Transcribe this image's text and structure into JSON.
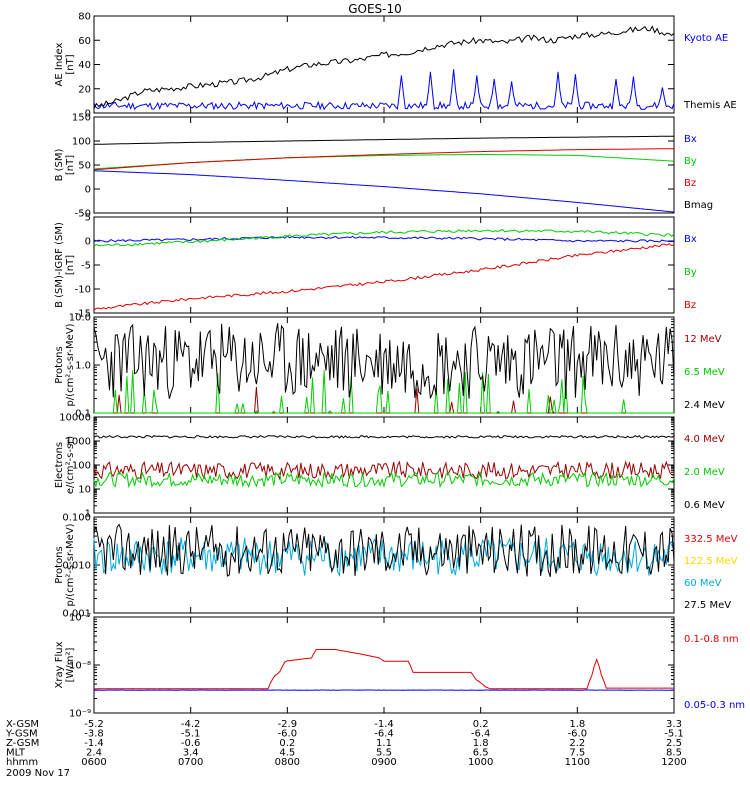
{
  "title": "GOES-10",
  "date_label": "2009 Nov 17",
  "colors": {
    "black": "#000000",
    "blue": "#0000ff",
    "green": "#00cc00",
    "red": "#dd0000",
    "darkred": "#990000",
    "yellow": "#ffd700",
    "cyan": "#00aadd"
  },
  "chart_data": [
    {
      "type": "line",
      "id": "ae",
      "ylabel": [
        "AE Index",
        "[nT]"
      ],
      "ylim": [
        0,
        80
      ],
      "yticks": [
        0,
        20,
        40,
        60,
        80
      ],
      "ytick_labels": [
        "0",
        "20",
        "40",
        "60",
        "80"
      ],
      "series": [
        {
          "name": "Kyoto AE",
          "color": "blue",
          "kind": "noise",
          "base": 6,
          "amp": 3,
          "seed": 11,
          "spikes": [
            [
              0.53,
              25
            ],
            [
              0.58,
              28
            ],
            [
              0.62,
              30
            ],
            [
              0.66,
              25
            ],
            [
              0.69,
              22
            ],
            [
              0.72,
              20
            ],
            [
              0.8,
              28
            ],
            [
              0.83,
              26
            ],
            [
              0.9,
              22
            ],
            [
              0.93,
              24
            ],
            [
              0.98,
              15
            ]
          ]
        },
        {
          "name": "Themis AE",
          "color": "black",
          "kind": "points",
          "x": [
            6.0,
            6.25,
            6.5,
            6.75,
            7.0,
            7.25,
            7.5,
            7.75,
            8.0,
            8.25,
            8.5,
            8.75,
            9.0,
            9.25,
            9.5,
            9.75,
            10.0,
            10.25,
            10.5,
            10.75,
            11.0,
            11.25,
            11.5,
            11.75,
            12.0
          ],
          "y": [
            5,
            10,
            18,
            20,
            22,
            24,
            26,
            30,
            36,
            40,
            42,
            44,
            48,
            50,
            55,
            58,
            60,
            58,
            62,
            60,
            64,
            65,
            68,
            70,
            64
          ],
          "jitter": 2.5,
          "seed": 3
        }
      ]
    },
    {
      "type": "line",
      "id": "bsm",
      "ylabel": [
        "B (SM)",
        "[nT]"
      ],
      "ylim": [
        -50,
        150
      ],
      "yticks": [
        -50,
        0,
        50,
        100,
        150
      ],
      "ytick_labels": [
        "-50",
        "0",
        "50",
        "100",
        "150"
      ],
      "series": [
        {
          "name": "Bx",
          "color": "blue",
          "kind": "points",
          "x": [
            6,
            7,
            8,
            9,
            10,
            11,
            12
          ],
          "y": [
            38,
            30,
            18,
            5,
            -10,
            -28,
            -48
          ]
        },
        {
          "name": "By",
          "color": "green",
          "kind": "points",
          "x": [
            6,
            7,
            8,
            9,
            10,
            11,
            12
          ],
          "y": [
            42,
            55,
            65,
            70,
            72,
            70,
            58
          ]
        },
        {
          "name": "Bz",
          "color": "red",
          "kind": "points",
          "x": [
            6,
            7,
            8,
            9,
            10,
            11,
            12
          ],
          "y": [
            40,
            55,
            65,
            72,
            78,
            82,
            84
          ]
        },
        {
          "name": "Bmag",
          "color": "black",
          "kind": "points",
          "x": [
            6,
            7,
            8,
            9,
            10,
            11,
            12
          ],
          "y": [
            93,
            97,
            100,
            103,
            106,
            108,
            110
          ]
        }
      ]
    },
    {
      "type": "line",
      "id": "bdiff",
      "ylabel": [
        "B (SM)-IGRF (SM)",
        "[nT]"
      ],
      "ylim": [
        -15,
        5
      ],
      "yticks": [
        -15,
        -10,
        -5,
        0,
        5
      ],
      "ytick_labels": [
        "-15",
        "-10",
        "-5",
        "0",
        "5"
      ],
      "series": [
        {
          "name": "Bx",
          "color": "blue",
          "kind": "points",
          "x": [
            6,
            7,
            8,
            9,
            10,
            11,
            12
          ],
          "y": [
            0.0,
            0.3,
            0.8,
            0.7,
            0.5,
            0.0,
            0.0
          ],
          "jitter": 0.25,
          "seed": 5
        },
        {
          "name": "By",
          "color": "green",
          "kind": "points",
          "x": [
            6,
            7,
            8,
            9,
            10,
            11,
            12
          ],
          "y": [
            -1.0,
            -0.2,
            1.0,
            1.8,
            2.2,
            2.0,
            1.2
          ],
          "jitter": 0.3,
          "seed": 8
        },
        {
          "name": "Bz",
          "color": "red",
          "kind": "points",
          "x": [
            6,
            7,
            8,
            9,
            10,
            11,
            12
          ],
          "y": [
            -14.2,
            -12.0,
            -10.5,
            -8.5,
            -6.0,
            -3.0,
            -0.6
          ],
          "jitter": 0.3,
          "seed": 9
        }
      ]
    },
    {
      "type": "line",
      "id": "prot_lo",
      "log": true,
      "ylabel": [
        "Protons",
        "p/(cm²-s-sr-MeV)"
      ],
      "ylim": [
        0.1,
        10
      ],
      "yticks": [
        0.1,
        1,
        10
      ],
      "ytick_labels": [
        "0.1",
        "1.0",
        "10.0"
      ],
      "series": [
        {
          "name": "12 MeV",
          "color": "darkred",
          "kind": "noise",
          "base": 0.1,
          "amp": 0.05,
          "seed": 21,
          "sparse": 0.08,
          "logspan": 0.6
        },
        {
          "name": "6.5 MeV",
          "color": "green",
          "kind": "noise",
          "base": 0.1,
          "amp": 0.1,
          "seed": 22,
          "sparse": 0.25,
          "logspan": 0.9
        },
        {
          "name": "2.4 MeV",
          "color": "black",
          "kind": "noise",
          "base": 1.2,
          "amp": 0.4,
          "seed": 23,
          "logspan": 0.8
        }
      ]
    },
    {
      "type": "line",
      "id": "elec",
      "log": true,
      "ylabel": [
        "Electrons",
        "e/(cm²-s-sr)"
      ],
      "ylim": [
        1,
        10000
      ],
      "yticks": [
        1,
        10,
        100,
        1000,
        10000
      ],
      "ytick_labels": [
        "1",
        "10",
        "100",
        "1000",
        "10000"
      ],
      "series": [
        {
          "name": "4.0 MeV",
          "color": "darkred",
          "kind": "noise",
          "base": 60,
          "amp": 0,
          "seed": 31,
          "logspan": 0.35
        },
        {
          "name": "2.0 MeV",
          "color": "green",
          "kind": "noise",
          "base": 25,
          "amp": 0,
          "seed": 32,
          "logspan": 0.3
        },
        {
          "name": "0.6 MeV",
          "color": "black",
          "kind": "noise",
          "base": 1500,
          "amp": 0,
          "seed": 33,
          "logspan": 0.05
        }
      ]
    },
    {
      "type": "line",
      "id": "prot_hi",
      "log": true,
      "ylabel": [
        "Protons",
        "p/(cm²-s-sr-MeV)"
      ],
      "ylim": [
        0.001,
        0.1
      ],
      "yticks": [
        0.001,
        0.01,
        0.1
      ],
      "ytick_labels": [
        "0.001",
        "0.010",
        "0.100"
      ],
      "series": [
        {
          "name": "332.5 MeV",
          "color": "red",
          "kind": "none"
        },
        {
          "name": "122.5 MeV",
          "color": "yellow",
          "kind": "none"
        },
        {
          "name": "60 MeV",
          "color": "cyan",
          "kind": "noise",
          "base": 0.015,
          "amp": 0,
          "seed": 41,
          "logspan": 0.4
        },
        {
          "name": "27.5 MeV",
          "color": "black",
          "kind": "noise",
          "base": 0.02,
          "amp": 0,
          "seed": 42,
          "logspan": 0.55
        }
      ]
    },
    {
      "type": "line",
      "id": "xray",
      "log": true,
      "ylabel": [
        "Xray Flux",
        "[W/m²]"
      ],
      "ylim": [
        1e-09,
        1e-07
      ],
      "yticks": [
        1e-09,
        1e-08,
        1e-07
      ],
      "ytick_labels": [
        "10⁻⁹",
        "10⁻⁸",
        "10⁻⁷"
      ],
      "series": [
        {
          "name": "0.1-0.8 nm",
          "color": "red",
          "kind": "points",
          "x": [
            6.0,
            7.8,
            7.87,
            7.92,
            7.98,
            8.25,
            8.3,
            8.5,
            8.55,
            8.95,
            9.0,
            9.25,
            9.3,
            9.9,
            9.95,
            10.05,
            10.1,
            11.1,
            11.15,
            11.2,
            11.25,
            11.3,
            12.0
          ],
          "y": [
            3.2e-09,
            3.2e-09,
            6e-09,
            7e-09,
            1.2e-08,
            1.4e-08,
            2.1e-08,
            2.1e-08,
            2e-08,
            1.4e-08,
            1.2e-08,
            1.2e-08,
            7e-09,
            7e-09,
            5e-09,
            3.5e-09,
            3.2e-09,
            3.2e-09,
            6e-09,
            1.3e-08,
            6e-09,
            3.3e-09,
            3.3e-09
          ]
        },
        {
          "name": "0.05-0.3 nm",
          "color": "blue",
          "kind": "points",
          "x": [
            6,
            12
          ],
          "y": [
            3e-09,
            3e-09
          ],
          "jitter": 2e-11,
          "seed": 51
        }
      ]
    }
  ],
  "x_axis": {
    "xlim": [
      6,
      12
    ],
    "ticks": [
      6,
      7,
      8,
      9,
      10,
      11,
      12
    ],
    "rows": [
      {
        "label": "X-GSM",
        "values": [
          "-5.2",
          "-4.2",
          "-2.9",
          "-1.4",
          "0.2",
          "1.8",
          "3.3"
        ]
      },
      {
        "label": "Y-GSM",
        "values": [
          "-3.8",
          "-5.1",
          "-6.0",
          "-6.4",
          "-6.4",
          "-6.0",
          "-5.1"
        ]
      },
      {
        "label": "Z-GSM",
        "values": [
          "-1.4",
          "-0.6",
          "0.2",
          "1.1",
          "1.8",
          "2.2",
          "2.5"
        ]
      },
      {
        "label": "MLT",
        "values": [
          "2.4",
          "3.4",
          "4.5",
          "5.5",
          "6.5",
          "7.5",
          "8.5"
        ]
      },
      {
        "label": "hhmm",
        "values": [
          "0600",
          "0700",
          "0800",
          "0900",
          "1000",
          "1100",
          "1200"
        ]
      }
    ]
  }
}
